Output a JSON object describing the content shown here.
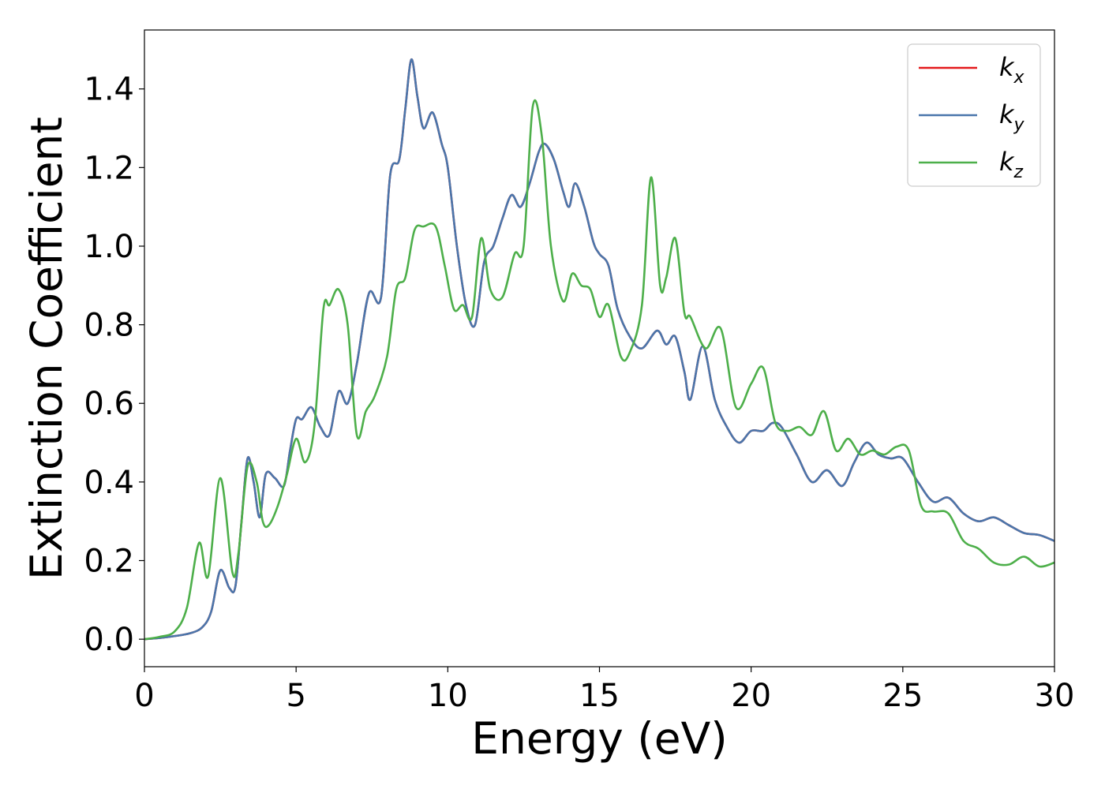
{
  "chart_data": {
    "type": "line",
    "xlabel": "Energy (eV)",
    "ylabel": "Extinction Coefficient",
    "xlim": [
      0,
      30
    ],
    "ylim": [
      -0.07,
      1.55
    ],
    "xticks": [
      0,
      5,
      10,
      15,
      20,
      25,
      30
    ],
    "xtick_labels": [
      "0",
      "5",
      "10",
      "15",
      "20",
      "25",
      "30"
    ],
    "yticks": [
      0.0,
      0.2,
      0.4,
      0.6,
      0.8,
      1.0,
      1.2,
      1.4
    ],
    "ytick_labels": [
      "0.0",
      "0.2",
      "0.4",
      "0.6",
      "0.8",
      "1.0",
      "1.2",
      "1.4"
    ],
    "grid": false,
    "legend_position": "top-right",
    "series": [
      {
        "name": "k",
        "subscript": "x",
        "color": "#e41a1c",
        "x": [
          0,
          0.5,
          1.0,
          1.5,
          1.9,
          2.2,
          2.5,
          2.8,
          3.0,
          3.2,
          3.4,
          3.6,
          3.8,
          4.0,
          4.3,
          4.6,
          4.8,
          5.0,
          5.2,
          5.5,
          5.8,
          6.1,
          6.4,
          6.7,
          7.0,
          7.4,
          7.8,
          8.1,
          8.4,
          8.6,
          8.8,
          9.0,
          9.2,
          9.5,
          9.8,
          10.0,
          10.3,
          10.6,
          10.9,
          11.2,
          11.5,
          11.8,
          12.1,
          12.4,
          12.7,
          13.0,
          13.2,
          13.5,
          13.8,
          14.0,
          14.2,
          14.5,
          14.8,
          15.0,
          15.3,
          15.6,
          16.0,
          16.4,
          16.9,
          17.2,
          17.5,
          17.8,
          18.0,
          18.4,
          18.8,
          19.2,
          19.6,
          20.0,
          20.4,
          20.7,
          21.0,
          21.5,
          22.0,
          22.5,
          23.0,
          23.4,
          23.8,
          24.2,
          24.6,
          25.0,
          25.5,
          26.0,
          26.5,
          27.0,
          27.5,
          28.0,
          28.5,
          29.0,
          29.5,
          30.0
        ],
        "y": [
          0.0,
          0.003,
          0.008,
          0.015,
          0.03,
          0.07,
          0.175,
          0.13,
          0.135,
          0.3,
          0.46,
          0.4,
          0.31,
          0.42,
          0.41,
          0.39,
          0.48,
          0.56,
          0.56,
          0.59,
          0.54,
          0.52,
          0.63,
          0.6,
          0.7,
          0.88,
          0.87,
          1.18,
          1.22,
          1.35,
          1.475,
          1.38,
          1.3,
          1.34,
          1.26,
          1.2,
          1.0,
          0.85,
          0.8,
          0.96,
          1.0,
          1.07,
          1.13,
          1.1,
          1.16,
          1.24,
          1.26,
          1.22,
          1.14,
          1.1,
          1.16,
          1.1,
          1.01,
          0.98,
          0.95,
          0.84,
          0.77,
          0.74,
          0.785,
          0.75,
          0.77,
          0.68,
          0.61,
          0.745,
          0.61,
          0.54,
          0.5,
          0.53,
          0.53,
          0.55,
          0.54,
          0.47,
          0.4,
          0.43,
          0.39,
          0.45,
          0.5,
          0.47,
          0.46,
          0.46,
          0.4,
          0.35,
          0.36,
          0.32,
          0.3,
          0.31,
          0.29,
          0.27,
          0.265,
          0.25
        ]
      },
      {
        "name": "k",
        "subscript": "y",
        "color": "#4a76ab",
        "x": [
          0,
          0.5,
          1.0,
          1.5,
          1.9,
          2.2,
          2.5,
          2.8,
          3.0,
          3.2,
          3.4,
          3.6,
          3.8,
          4.0,
          4.3,
          4.6,
          4.8,
          5.0,
          5.2,
          5.5,
          5.8,
          6.1,
          6.4,
          6.7,
          7.0,
          7.4,
          7.8,
          8.1,
          8.4,
          8.6,
          8.8,
          9.0,
          9.2,
          9.5,
          9.8,
          10.0,
          10.3,
          10.6,
          10.9,
          11.2,
          11.5,
          11.8,
          12.1,
          12.4,
          12.7,
          13.0,
          13.2,
          13.5,
          13.8,
          14.0,
          14.2,
          14.5,
          14.8,
          15.0,
          15.3,
          15.6,
          16.0,
          16.4,
          16.9,
          17.2,
          17.5,
          17.8,
          18.0,
          18.4,
          18.8,
          19.2,
          19.6,
          20.0,
          20.4,
          20.7,
          21.0,
          21.5,
          22.0,
          22.5,
          23.0,
          23.4,
          23.8,
          24.2,
          24.6,
          25.0,
          25.5,
          26.0,
          26.5,
          27.0,
          27.5,
          28.0,
          28.5,
          29.0,
          29.5,
          30.0
        ],
        "y": [
          0.0,
          0.003,
          0.008,
          0.015,
          0.03,
          0.07,
          0.175,
          0.13,
          0.135,
          0.3,
          0.46,
          0.4,
          0.31,
          0.42,
          0.41,
          0.39,
          0.48,
          0.56,
          0.56,
          0.59,
          0.54,
          0.52,
          0.63,
          0.6,
          0.7,
          0.88,
          0.87,
          1.18,
          1.22,
          1.35,
          1.475,
          1.38,
          1.3,
          1.34,
          1.26,
          1.2,
          1.0,
          0.85,
          0.8,
          0.96,
          1.0,
          1.07,
          1.13,
          1.1,
          1.16,
          1.24,
          1.26,
          1.22,
          1.14,
          1.1,
          1.16,
          1.1,
          1.01,
          0.98,
          0.95,
          0.84,
          0.77,
          0.74,
          0.785,
          0.75,
          0.77,
          0.68,
          0.61,
          0.745,
          0.61,
          0.54,
          0.5,
          0.53,
          0.53,
          0.55,
          0.54,
          0.47,
          0.4,
          0.43,
          0.39,
          0.45,
          0.5,
          0.47,
          0.46,
          0.46,
          0.4,
          0.35,
          0.36,
          0.32,
          0.3,
          0.31,
          0.29,
          0.27,
          0.265,
          0.25
        ]
      },
      {
        "name": "k",
        "subscript": "z",
        "color": "#4daf4a",
        "x": [
          0,
          0.5,
          1.0,
          1.4,
          1.8,
          2.1,
          2.5,
          2.9,
          3.1,
          3.4,
          3.7,
          3.9,
          4.1,
          4.4,
          4.7,
          5.0,
          5.3,
          5.6,
          5.9,
          6.1,
          6.4,
          6.7,
          7.0,
          7.3,
          7.6,
          8.0,
          8.3,
          8.6,
          8.9,
          9.2,
          9.6,
          9.9,
          10.2,
          10.5,
          10.8,
          11.1,
          11.4,
          11.8,
          12.2,
          12.5,
          12.8,
          13.1,
          13.4,
          13.8,
          14.1,
          14.4,
          14.7,
          15.0,
          15.3,
          15.7,
          16.0,
          16.4,
          16.7,
          17.0,
          17.2,
          17.5,
          17.8,
          18.0,
          18.5,
          19.0,
          19.5,
          20.0,
          20.4,
          20.8,
          21.2,
          21.6,
          22.0,
          22.4,
          22.8,
          23.2,
          23.6,
          24.0,
          24.4,
          24.8,
          25.2,
          25.6,
          26.0,
          26.5,
          27.0,
          27.5,
          28.0,
          28.5,
          29.0,
          29.5,
          30.0
        ],
        "y": [
          0.0,
          0.006,
          0.02,
          0.08,
          0.245,
          0.16,
          0.41,
          0.17,
          0.22,
          0.44,
          0.4,
          0.3,
          0.29,
          0.34,
          0.42,
          0.51,
          0.45,
          0.54,
          0.84,
          0.85,
          0.89,
          0.8,
          0.52,
          0.58,
          0.62,
          0.72,
          0.89,
          0.92,
          1.04,
          1.05,
          1.05,
          0.95,
          0.84,
          0.85,
          0.82,
          1.02,
          0.89,
          0.87,
          0.98,
          1.0,
          1.355,
          1.28,
          1.0,
          0.86,
          0.93,
          0.9,
          0.89,
          0.82,
          0.85,
          0.72,
          0.73,
          0.85,
          1.175,
          0.9,
          0.92,
          1.02,
          0.83,
          0.82,
          0.74,
          0.79,
          0.59,
          0.65,
          0.69,
          0.55,
          0.53,
          0.54,
          0.52,
          0.58,
          0.48,
          0.51,
          0.47,
          0.48,
          0.47,
          0.49,
          0.48,
          0.34,
          0.325,
          0.32,
          0.25,
          0.23,
          0.195,
          0.19,
          0.21,
          0.185,
          0.195
        ]
      }
    ]
  }
}
